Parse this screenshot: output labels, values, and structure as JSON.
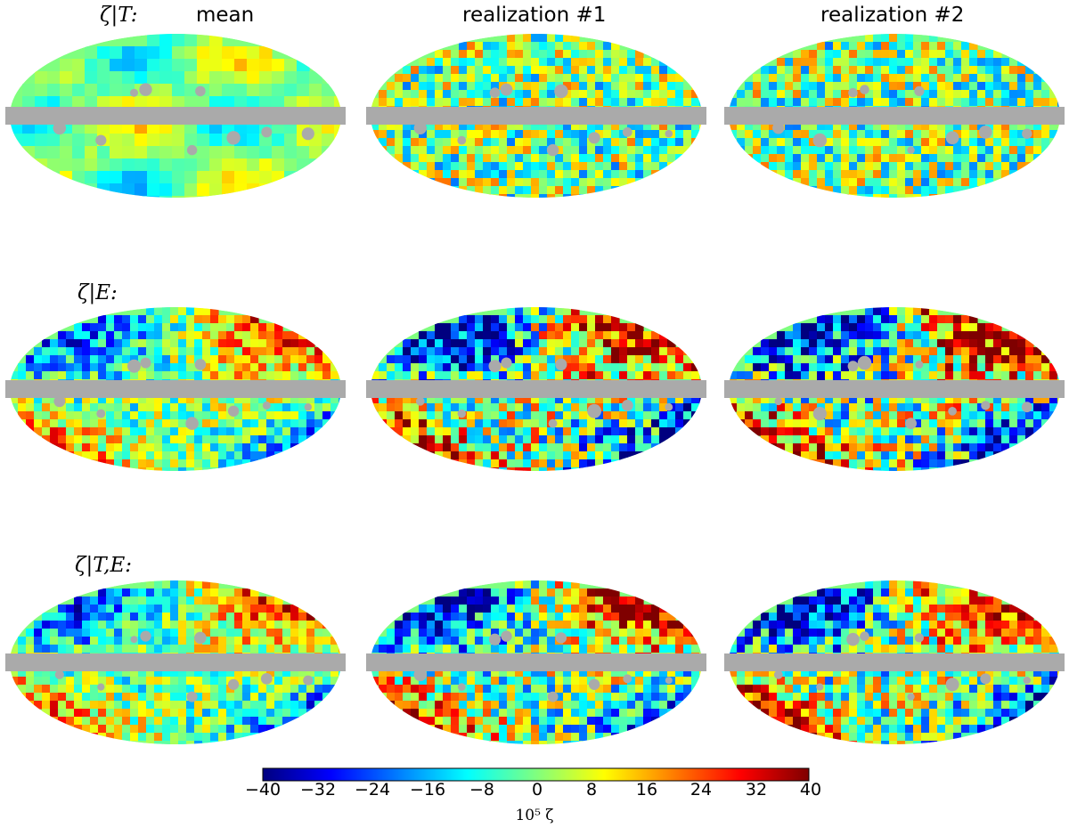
{
  "column_titles": [
    "mean",
    "realization #1",
    "realization #2"
  ],
  "row_labels": [
    "ζ|T:",
    "ζ|E:",
    "ζ|T,E:"
  ],
  "panels": [
    {
      "row": "ζ|T:",
      "column": "mean",
      "amplitude": 0.35,
      "pattern": "smooth-mean",
      "seed": 3
    },
    {
      "row": "ζ|T:",
      "column": "realization #1",
      "amplitude": 0.75,
      "pattern": "noise",
      "seed": 11
    },
    {
      "row": "ζ|T:",
      "column": "realization #2",
      "amplitude": 0.75,
      "pattern": "noise",
      "seed": 19
    },
    {
      "row": "ζ|E:",
      "column": "mean",
      "amplitude": 0.6,
      "pattern": "quadrupole",
      "seed": 5
    },
    {
      "row": "ζ|E:",
      "column": "realization #1",
      "amplitude": 0.95,
      "pattern": "quadrupole-noise",
      "seed": 23
    },
    {
      "row": "ζ|E:",
      "column": "realization #2",
      "amplitude": 0.95,
      "pattern": "quadrupole-noise",
      "seed": 31
    },
    {
      "row": "ζ|T,E:",
      "column": "mean",
      "amplitude": 0.6,
      "pattern": "quadrupole",
      "seed": 7
    },
    {
      "row": "ζ|T,E:",
      "column": "realization #1",
      "amplitude": 0.8,
      "pattern": "quadrupole-noise",
      "seed": 41
    },
    {
      "row": "ζ|T,E:",
      "column": "realization #2",
      "amplitude": 0.85,
      "pattern": "quadrupole-noise",
      "seed": 53
    }
  ],
  "mask": {
    "color": "#aaaaaa",
    "description": "galactic plane band with point-source holes"
  },
  "colorbar": {
    "colormap": "jet",
    "min": -40,
    "max": 40,
    "ticks": [
      "−40",
      "−32",
      "−24",
      "−16",
      "−8",
      "0",
      "8",
      "16",
      "24",
      "32",
      "40"
    ],
    "label": "10⁵ ζ"
  },
  "colors": {
    "jet": [
      "#00007f",
      "#0000ff",
      "#007fff",
      "#00ffff",
      "#7fff7f",
      "#ffff00",
      "#ff7f00",
      "#ff0000",
      "#7f0000"
    ],
    "mask": "#aaaaaa"
  }
}
